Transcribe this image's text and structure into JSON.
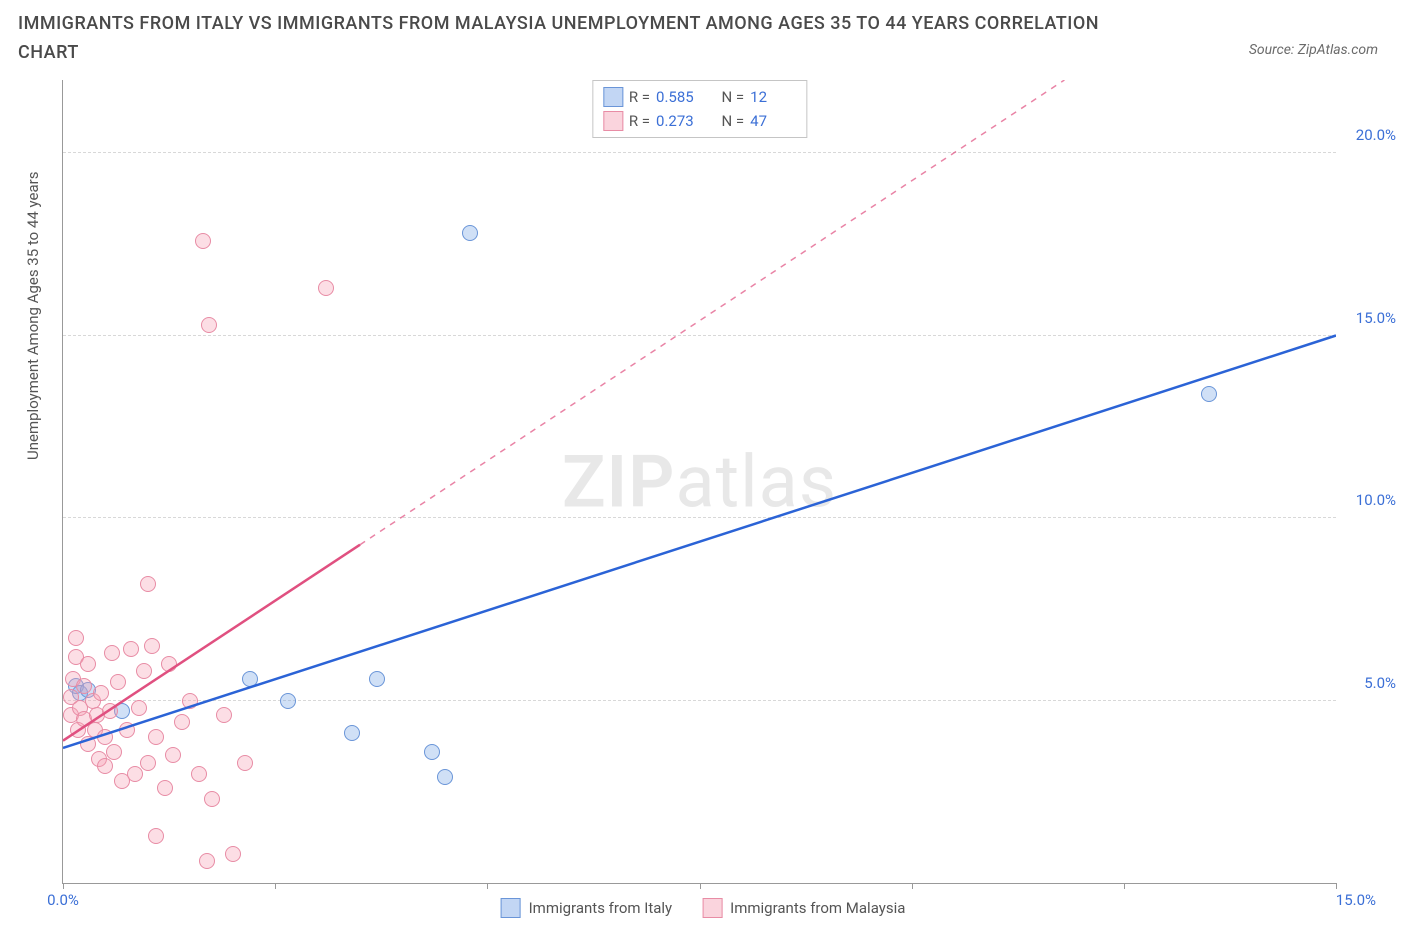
{
  "title": "IMMIGRANTS FROM ITALY VS IMMIGRANTS FROM MALAYSIA UNEMPLOYMENT AMONG AGES 35 TO 44 YEARS CORRELATION CHART",
  "source_prefix": "Source: ",
  "source_name": "ZipAtlas.com",
  "yaxis_title": "Unemployment Among Ages 35 to 44 years",
  "watermark_bold": "ZIP",
  "watermark_rest": "atlas",
  "chart": {
    "type": "scatter",
    "xlim": [
      0,
      15
    ],
    "ylim": [
      0,
      22
    ],
    "xtick_positions": [
      0,
      2.5,
      5,
      7.5,
      10,
      12.5,
      15
    ],
    "xlabel_0": "0.0%",
    "xlabel_15": "15.0%",
    "ylines": [
      {
        "y": 5,
        "label": "5.0%"
      },
      {
        "y": 10,
        "label": "10.0%"
      },
      {
        "y": 15,
        "label": "15.0%"
      },
      {
        "y": 20,
        "label": "20.0%"
      }
    ],
    "background_color": "#ffffff",
    "grid_color": "#d8d8d8",
    "marker_size": 16,
    "series": [
      {
        "name": "Immigrants from Italy",
        "color_fill": "rgba(120,165,230,0.35)",
        "color_stroke": "#6a95d8",
        "trend_color": "#2b63d6",
        "trend_solid_end_x": 15,
        "trend_dashed": false,
        "trend": {
          "x1": 0,
          "y1": 3.7,
          "x2": 15,
          "y2": 15.0
        },
        "R_label": "R = ",
        "R": "0.585",
        "N_label": "N = ",
        "N": "12",
        "points": [
          {
            "x": 0.15,
            "y": 5.4
          },
          {
            "x": 0.2,
            "y": 5.2
          },
          {
            "x": 0.3,
            "y": 5.3
          },
          {
            "x": 0.7,
            "y": 4.7
          },
          {
            "x": 2.2,
            "y": 5.6
          },
          {
            "x": 2.65,
            "y": 5.0
          },
          {
            "x": 3.4,
            "y": 4.1
          },
          {
            "x": 3.7,
            "y": 5.6
          },
          {
            "x": 4.35,
            "y": 3.6
          },
          {
            "x": 4.5,
            "y": 2.9
          },
          {
            "x": 4.8,
            "y": 17.8
          },
          {
            "x": 13.5,
            "y": 13.4
          }
        ]
      },
      {
        "name": "Immigrants from Malaysia",
        "color_fill": "rgba(245,160,180,0.35)",
        "color_stroke": "#e88ca5",
        "trend_color": "#e05080",
        "trend_solid_end_x": 3.5,
        "trend_dashed": true,
        "trend": {
          "x1": 0,
          "y1": 3.9,
          "x2": 11.8,
          "y2": 22.0
        },
        "R_label": "R = ",
        "R": "0.273",
        "N_label": "N = ",
        "N": "47",
        "points": [
          {
            "x": 0.1,
            "y": 4.6
          },
          {
            "x": 0.1,
            "y": 5.1
          },
          {
            "x": 0.12,
            "y": 5.6
          },
          {
            "x": 0.15,
            "y": 6.2
          },
          {
            "x": 0.15,
            "y": 6.7
          },
          {
            "x": 0.18,
            "y": 4.2
          },
          {
            "x": 0.2,
            "y": 4.8
          },
          {
            "x": 0.25,
            "y": 5.4
          },
          {
            "x": 0.25,
            "y": 4.5
          },
          {
            "x": 0.3,
            "y": 6.0
          },
          {
            "x": 0.3,
            "y": 3.8
          },
          {
            "x": 0.35,
            "y": 5.0
          },
          {
            "x": 0.38,
            "y": 4.2
          },
          {
            "x": 0.4,
            "y": 4.6
          },
          {
            "x": 0.42,
            "y": 3.4
          },
          {
            "x": 0.45,
            "y": 5.2
          },
          {
            "x": 0.5,
            "y": 4.0
          },
          {
            "x": 0.5,
            "y": 3.2
          },
          {
            "x": 0.55,
            "y": 4.7
          },
          {
            "x": 0.58,
            "y": 6.3
          },
          {
            "x": 0.6,
            "y": 3.6
          },
          {
            "x": 0.65,
            "y": 5.5
          },
          {
            "x": 0.7,
            "y": 2.8
          },
          {
            "x": 0.75,
            "y": 4.2
          },
          {
            "x": 0.8,
            "y": 6.4
          },
          {
            "x": 0.85,
            "y": 3.0
          },
          {
            "x": 0.9,
            "y": 4.8
          },
          {
            "x": 0.95,
            "y": 5.8
          },
          {
            "x": 1.0,
            "y": 8.2
          },
          {
            "x": 1.0,
            "y": 3.3
          },
          {
            "x": 1.05,
            "y": 6.5
          },
          {
            "x": 1.1,
            "y": 4.0
          },
          {
            "x": 1.1,
            "y": 1.3
          },
          {
            "x": 1.2,
            "y": 2.6
          },
          {
            "x": 1.25,
            "y": 6.0
          },
          {
            "x": 1.3,
            "y": 3.5
          },
          {
            "x": 1.4,
            "y": 4.4
          },
          {
            "x": 1.5,
            "y": 5.0
          },
          {
            "x": 1.6,
            "y": 3.0
          },
          {
            "x": 1.65,
            "y": 17.6
          },
          {
            "x": 1.7,
            "y": 0.6
          },
          {
            "x": 1.75,
            "y": 2.3
          },
          {
            "x": 1.72,
            "y": 15.3
          },
          {
            "x": 1.9,
            "y": 4.6
          },
          {
            "x": 2.0,
            "y": 0.8
          },
          {
            "x": 2.15,
            "y": 3.3
          },
          {
            "x": 3.1,
            "y": 16.3
          }
        ]
      }
    ]
  },
  "bottom_legend": [
    {
      "swatch": "blue",
      "label": "Immigrants from Italy"
    },
    {
      "swatch": "pink",
      "label": "Immigrants from Malaysia"
    }
  ]
}
